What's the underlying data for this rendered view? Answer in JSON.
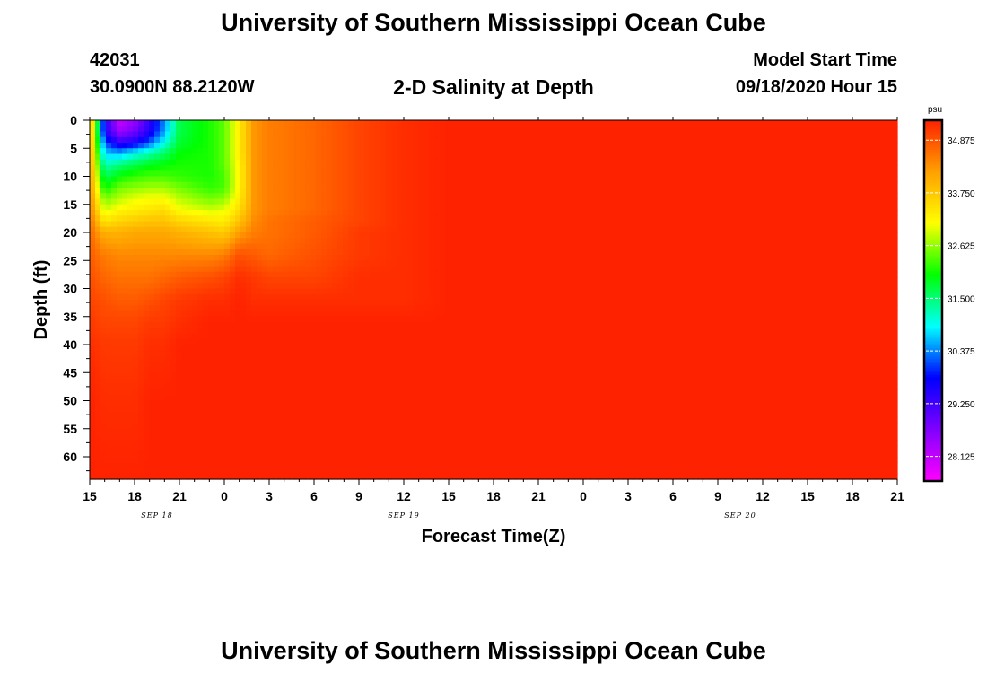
{
  "header": {
    "title_top": "University of Southern Mississippi Ocean Cube",
    "title_bottom": "University of Southern Mississippi Ocean Cube",
    "station_id": "42031",
    "station_coords": "30.0900N 88.2120W",
    "plot_title": "2-D Salinity at Depth",
    "model_start_label": "Model Start Time",
    "model_start_value": "09/18/2020 Hour 15"
  },
  "colors": {
    "ramp": [
      "#ff00ff",
      "#8000ff",
      "#0000ff",
      "#00ffff",
      "#00ff00",
      "#ffff00",
      "#ffa000",
      "#ff2200"
    ]
  },
  "chart_data": {
    "type": "heatmap",
    "title": "2-D Salinity at Depth",
    "xlabel": "Forecast Time(Z)",
    "ylabel": "Depth (ft)",
    "x_tick_labels": [
      "15",
      "18",
      "21",
      "0",
      "3",
      "6",
      "9",
      "12",
      "15",
      "18",
      "21",
      "0",
      "3",
      "6",
      "9",
      "12",
      "15",
      "18",
      "21"
    ],
    "date_labels": [
      {
        "label": "SEP 18",
        "x_hour": 4.5
      },
      {
        "label": "SEP 19",
        "x_hour": 21
      },
      {
        "label": "SEP 20",
        "x_hour": 43.5
      }
    ],
    "x_range_hours": [
      0,
      54
    ],
    "y_tick_labels": [
      "0",
      "5",
      "10",
      "15",
      "20",
      "25",
      "30",
      "35",
      "40",
      "45",
      "50",
      "55",
      "60"
    ],
    "ylim": [
      0,
      64
    ],
    "colorbar": {
      "unit": "psu",
      "ticks": [
        "34.875",
        "33.750",
        "32.625",
        "31.500",
        "30.375",
        "29.250",
        "28.125"
      ],
      "range": [
        27.6,
        35.3
      ]
    },
    "grid": {
      "x_hours": [
        0,
        1,
        2,
        3,
        4,
        5,
        6,
        8,
        9,
        10,
        11,
        12,
        15,
        18,
        21,
        24,
        27,
        33,
        36,
        54
      ],
      "y_depths": [
        0,
        2,
        4,
        6,
        8,
        10,
        12,
        14,
        16,
        18,
        20,
        24,
        28,
        32,
        36,
        40,
        50,
        64
      ],
      "values": [
        [
          34.2,
          29.6,
          28.1,
          28.5,
          29.4,
          30.4,
          31.7,
          32.1,
          32.4,
          33.3,
          34.3,
          34.5,
          34.7,
          35.0,
          35.2,
          35.3,
          35.3,
          35.3,
          35.3,
          35.3
        ],
        [
          34.2,
          29.6,
          28.4,
          28.8,
          29.5,
          30.5,
          31.7,
          32.1,
          32.4,
          33.3,
          34.3,
          34.5,
          34.7,
          35.0,
          35.2,
          35.3,
          35.3,
          35.3,
          35.3,
          35.3
        ],
        [
          34.2,
          30.2,
          29.4,
          29.6,
          30.2,
          31.0,
          31.8,
          32.1,
          32.4,
          33.3,
          34.3,
          34.5,
          34.7,
          35.0,
          35.2,
          35.3,
          35.3,
          35.3,
          35.3,
          35.3
        ],
        [
          34.2,
          30.7,
          30.6,
          31.0,
          31.3,
          31.6,
          32.0,
          32.1,
          32.4,
          33.3,
          34.3,
          34.5,
          34.7,
          35.0,
          35.2,
          35.3,
          35.3,
          35.3,
          35.3,
          35.3
        ],
        [
          34.2,
          31.2,
          31.5,
          31.7,
          31.9,
          32.0,
          32.1,
          32.1,
          32.4,
          33.2,
          34.3,
          34.5,
          34.7,
          35.0,
          35.2,
          35.3,
          35.3,
          35.3,
          35.3,
          35.3
        ],
        [
          34.3,
          31.6,
          32.0,
          32.2,
          32.3,
          32.3,
          32.2,
          32.1,
          32.3,
          33.2,
          34.3,
          34.5,
          34.7,
          35.0,
          35.2,
          35.3,
          35.3,
          35.3,
          35.3,
          35.3
        ],
        [
          34.3,
          32.0,
          32.5,
          32.6,
          32.7,
          32.7,
          32.5,
          32.2,
          32.3,
          33.2,
          34.3,
          34.5,
          34.7,
          35.0,
          35.2,
          35.3,
          35.3,
          35.3,
          35.3,
          35.3
        ],
        [
          34.4,
          32.5,
          32.8,
          33.0,
          33.1,
          33.1,
          32.8,
          32.5,
          32.6,
          33.3,
          34.3,
          34.5,
          34.7,
          35.0,
          35.2,
          35.3,
          35.3,
          35.3,
          35.3,
          35.3
        ],
        [
          34.5,
          32.9,
          33.2,
          33.3,
          33.4,
          33.5,
          33.1,
          32.9,
          33.0,
          33.5,
          34.3,
          34.5,
          34.7,
          35.0,
          35.2,
          35.3,
          35.3,
          35.3,
          35.3,
          35.3
        ],
        [
          34.6,
          33.4,
          33.6,
          33.7,
          33.8,
          33.8,
          33.6,
          33.4,
          33.3,
          33.8,
          34.4,
          34.6,
          34.8,
          35.0,
          35.2,
          35.3,
          35.3,
          35.3,
          35.3,
          35.3
        ],
        [
          34.7,
          34.0,
          34.0,
          34.1,
          34.1,
          34.1,
          34.0,
          33.8,
          33.7,
          34.2,
          34.5,
          34.6,
          34.8,
          35.1,
          35.2,
          35.3,
          35.3,
          35.3,
          35.3,
          35.3
        ],
        [
          34.8,
          34.5,
          34.4,
          34.4,
          34.4,
          34.4,
          34.4,
          34.4,
          34.5,
          34.9,
          34.8,
          34.7,
          34.9,
          35.1,
          35.2,
          35.3,
          35.3,
          35.3,
          35.3,
          35.3
        ],
        [
          34.9,
          34.7,
          34.6,
          34.6,
          34.6,
          34.7,
          34.8,
          34.9,
          35.0,
          35.2,
          35.1,
          35.0,
          35.0,
          35.2,
          35.2,
          35.3,
          35.3,
          35.3,
          35.3,
          35.3
        ],
        [
          35.0,
          34.9,
          34.8,
          34.8,
          34.9,
          35.0,
          35.1,
          35.2,
          35.2,
          35.3,
          35.2,
          35.2,
          35.2,
          35.2,
          35.2,
          35.3,
          35.3,
          35.3,
          35.3,
          35.3
        ],
        [
          35.1,
          35.0,
          35.0,
          35.0,
          35.1,
          35.1,
          35.2,
          35.3,
          35.3,
          35.3,
          35.3,
          35.3,
          35.3,
          35.3,
          35.3,
          35.3,
          35.3,
          35.3,
          35.3,
          35.3
        ],
        [
          35.2,
          35.1,
          35.1,
          35.1,
          35.2,
          35.2,
          35.3,
          35.3,
          35.3,
          35.3,
          35.3,
          35.3,
          35.3,
          35.3,
          35.3,
          35.3,
          35.3,
          35.3,
          35.3,
          35.3
        ],
        [
          35.3,
          35.2,
          35.2,
          35.2,
          35.3,
          35.3,
          35.3,
          35.3,
          35.3,
          35.3,
          35.3,
          35.3,
          35.3,
          35.3,
          35.3,
          35.3,
          35.3,
          35.3,
          35.3,
          35.3
        ],
        [
          35.3,
          35.3,
          35.3,
          35.3,
          35.3,
          35.3,
          35.3,
          35.3,
          35.3,
          35.3,
          35.3,
          35.3,
          35.3,
          35.3,
          35.3,
          35.3,
          35.3,
          35.3,
          35.3,
          35.3
        ]
      ]
    }
  }
}
